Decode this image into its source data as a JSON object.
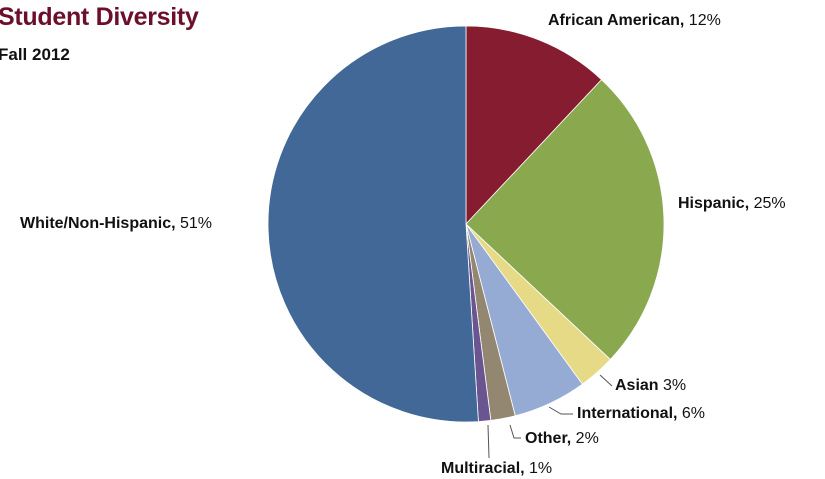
{
  "chart_data": {
    "type": "pie",
    "title": "Student Diversity",
    "subtitle": "Fall 2012",
    "start_angle_deg": 0,
    "direction": "clockwise",
    "slices": [
      {
        "label": "African American",
        "value": 12,
        "display": "12%",
        "sep": ", ",
        "color": "#851c30"
      },
      {
        "label": "Hispanic",
        "value": 25,
        "display": "25%",
        "sep": ", ",
        "color": "#8aa94f"
      },
      {
        "label": "Asian",
        "value": 3,
        "display": "3%",
        "sep": " ",
        "color": "#e6da86"
      },
      {
        "label": "International",
        "value": 6,
        "display": "6%",
        "sep": ", ",
        "color": "#96abd4"
      },
      {
        "label": "Other",
        "value": 2,
        "display": "2%",
        "sep": ", ",
        "color": "#948771"
      },
      {
        "label": "Multiracial",
        "value": 1,
        "display": "1%",
        "sep": ", ",
        "color": "#6a5591"
      },
      {
        "label": "White/Non-Hispanic",
        "value": 51,
        "display": "51%",
        "sep": ", ",
        "color": "#416897"
      }
    ]
  }
}
